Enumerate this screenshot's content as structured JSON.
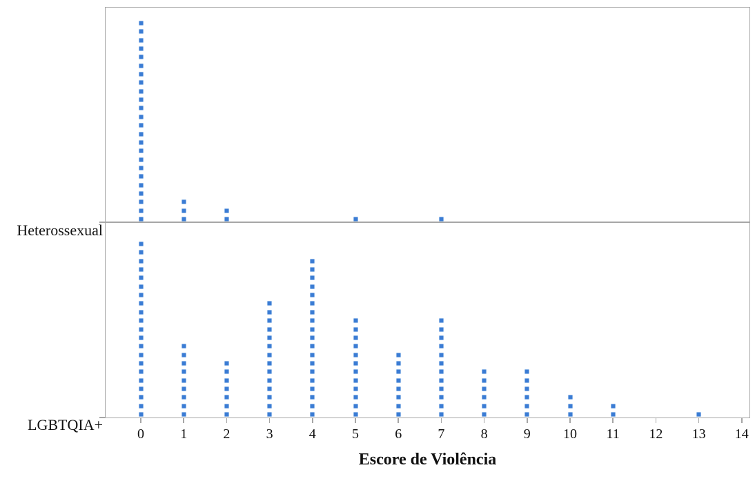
{
  "chart_data": {
    "type": "scatter",
    "subtype": "dot-plot",
    "title": "",
    "xlabel": "Escore de Violência",
    "ylabel": "",
    "x_ticks": [
      "0",
      "1",
      "2",
      "3",
      "4",
      "5",
      "6",
      "7",
      "8",
      "9",
      "10",
      "11",
      "12",
      "13",
      "14"
    ],
    "xlim": [
      -0.85,
      14.2
    ],
    "grid": false,
    "legend_position": "none",
    "marker": "filled-square",
    "panel_layout": "two-rows-shared-x",
    "groups": [
      {
        "label": "Heterossexual",
        "counts": [
          24,
          3,
          2,
          0,
          0,
          1,
          0,
          1,
          0,
          0,
          0,
          0,
          0,
          0,
          0
        ]
      },
      {
        "label": "LGBTQIA+",
        "counts": [
          21,
          9,
          7,
          14,
          19,
          12,
          8,
          12,
          6,
          6,
          3,
          2,
          0,
          1,
          0
        ]
      }
    ],
    "colors": {
      "dot_fill": "#3b7cd4",
      "dot_edge": "#8ab3e6",
      "axis": "#a6a6a6",
      "text": "#111111",
      "background": "#ffffff"
    }
  }
}
